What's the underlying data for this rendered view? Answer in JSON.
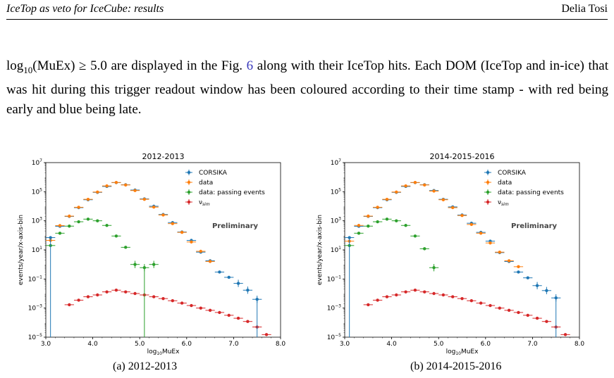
{
  "header": {
    "left": "IceTop as veto for IceCube: results",
    "right": "Delia Tosi"
  },
  "paragraph": {
    "math": "log",
    "math_sub": "10",
    "math_rest": "(MuEx) ≥ 5.0",
    "line1_tail": " are displayed in the Fig. ",
    "fig_ref": "6",
    "line1_tail2": " along with their IceTop hits. Each DOM (IceTop",
    "line2": "and in-ice) that was hit during this trigger readout window has been coloured according to their",
    "line3": "time stamp - with red being early and blue being late."
  },
  "captions": {
    "a": "(a) 2012-2013",
    "b": "(b) 2014-2015-2016"
  },
  "colors": {
    "corsika": "#1f77b4",
    "data": "#ff7f0e",
    "passing": "#2ca02c",
    "nusim": "#d62728"
  },
  "chart_data": [
    {
      "type": "scatter",
      "title": "2012-2013",
      "xlabel": "log10MuEx",
      "ylabel": "events/year/x-axis-bin",
      "xlim": [
        3.0,
        8.0
      ],
      "ylim_log10": [
        -5,
        7
      ],
      "yscale": "log",
      "xticks": [
        "3.0",
        "4.0",
        "5.0",
        "6.0",
        "7.0",
        "8.0"
      ],
      "yticks": [
        "10^-5",
        "10^-3",
        "10^-1",
        "10^1",
        "10^3",
        "10^5",
        "10^7"
      ],
      "annotation": "Preliminary",
      "legend_position": "top-right",
      "legend": [
        "CORSIKA",
        "data",
        "data: passing events",
        "ν_sim"
      ],
      "series": [
        {
          "name": "CORSIKA",
          "key": "corsika",
          "points": [
            [
              3.1,
              70
            ],
            [
              3.3,
              420
            ],
            [
              3.5,
              2000
            ],
            [
              3.7,
              8000
            ],
            [
              3.9,
              28000
            ],
            [
              4.1,
              90000
            ],
            [
              4.3,
              230000
            ],
            [
              4.5,
              420000
            ],
            [
              4.7,
              300000
            ],
            [
              4.9,
              130000
            ],
            [
              5.1,
              32000
            ],
            [
              5.3,
              10000
            ],
            [
              5.5,
              2700
            ],
            [
              5.7,
              750
            ],
            [
              5.9,
              170
            ],
            [
              6.1,
              45
            ],
            [
              6.3,
              7
            ],
            [
              6.5,
              1.8
            ],
            [
              6.7,
              0.3
            ],
            [
              6.9,
              0.13
            ],
            [
              7.1,
              0.05
            ],
            [
              7.3,
              0.017
            ],
            [
              7.5,
              0.004
            ]
          ]
        },
        {
          "name": "data",
          "key": "data",
          "points": [
            [
              3.1,
              45
            ],
            [
              3.3,
              470
            ],
            [
              3.5,
              2100
            ],
            [
              3.7,
              8500
            ],
            [
              3.9,
              30000
            ],
            [
              4.1,
              95000
            ],
            [
              4.3,
              250000
            ],
            [
              4.5,
              430000
            ],
            [
              4.7,
              290000
            ],
            [
              4.9,
              120000
            ],
            [
              5.1,
              30000
            ],
            [
              5.3,
              8700
            ],
            [
              5.5,
              2500
            ],
            [
              5.7,
              640
            ],
            [
              5.9,
              160
            ],
            [
              6.1,
              35
            ],
            [
              6.3,
              8
            ],
            [
              6.5,
              1.6
            ]
          ]
        },
        {
          "name": "data: passing events",
          "key": "passing",
          "points": [
            [
              3.1,
              20
            ],
            [
              3.3,
              140
            ],
            [
              3.5,
              430
            ],
            [
              3.7,
              860
            ],
            [
              3.9,
              1300
            ],
            [
              4.1,
              1000
            ],
            [
              4.3,
              480
            ],
            [
              4.5,
              90
            ],
            [
              4.7,
              15
            ],
            [
              4.9,
              1
            ],
            [
              5.1,
              0.6
            ],
            [
              5.3,
              1
            ]
          ]
        },
        {
          "name": "ν_sim",
          "key": "nusim",
          "points": [
            [
              3.5,
              0.0017
            ],
            [
              3.7,
              0.0035
            ],
            [
              3.9,
              0.006
            ],
            [
              4.1,
              0.008
            ],
            [
              4.3,
              0.013
            ],
            [
              4.5,
              0.017
            ],
            [
              4.7,
              0.013
            ],
            [
              4.9,
              0.01
            ],
            [
              5.1,
              0.008
            ],
            [
              5.3,
              0.006
            ],
            [
              5.5,
              0.0045
            ],
            [
              5.7,
              0.0032
            ],
            [
              5.9,
              0.0022
            ],
            [
              6.1,
              0.0015
            ],
            [
              6.3,
              0.001
            ],
            [
              6.5,
              0.0007
            ],
            [
              6.7,
              0.0005
            ],
            [
              6.9,
              0.00032
            ],
            [
              7.1,
              0.0002
            ],
            [
              7.3,
              0.00012
            ],
            [
              7.5,
              5e-05
            ],
            [
              7.7,
              1.5e-05
            ]
          ]
        }
      ]
    },
    {
      "type": "scatter",
      "title": "2014-2015-2016",
      "xlabel": "log10MuEx",
      "ylabel": "events/year/x-axis-bin",
      "xlim": [
        3.0,
        8.0
      ],
      "ylim_log10": [
        -5,
        7
      ],
      "yscale": "log",
      "xticks": [
        "3.0",
        "4.0",
        "5.0",
        "6.0",
        "7.0",
        "8.0"
      ],
      "yticks": [
        "10^-5",
        "10^-3",
        "10^-1",
        "10^1",
        "10^3",
        "10^5",
        "10^7"
      ],
      "annotation": "Preliminary",
      "legend_position": "top-right",
      "legend": [
        "CORSIKA",
        "data",
        "data: passing events",
        "ν_sim"
      ],
      "series": [
        {
          "name": "CORSIKA",
          "key": "corsika",
          "points": [
            [
              3.1,
              70
            ],
            [
              3.3,
              420
            ],
            [
              3.5,
              2000
            ],
            [
              3.7,
              8000
            ],
            [
              3.9,
              28000
            ],
            [
              4.1,
              90000
            ],
            [
              4.3,
              230000
            ],
            [
              4.5,
              420000
            ],
            [
              4.7,
              300000
            ],
            [
              4.9,
              120000
            ],
            [
              5.1,
              30000
            ],
            [
              5.3,
              9000
            ],
            [
              5.5,
              2500
            ],
            [
              5.7,
              680
            ],
            [
              5.9,
              160
            ],
            [
              6.1,
              40
            ],
            [
              6.3,
              6.5
            ],
            [
              6.5,
              1.6
            ],
            [
              6.7,
              0.3
            ],
            [
              6.9,
              0.12
            ],
            [
              7.1,
              0.035
            ],
            [
              7.3,
              0.016
            ],
            [
              7.5,
              0.005
            ]
          ]
        },
        {
          "name": "data",
          "key": "data",
          "points": [
            [
              3.1,
              40
            ],
            [
              3.3,
              480
            ],
            [
              3.5,
              2100
            ],
            [
              3.7,
              8500
            ],
            [
              3.9,
              30000
            ],
            [
              4.1,
              95000
            ],
            [
              4.3,
              250000
            ],
            [
              4.5,
              430000
            ],
            [
              4.7,
              290000
            ],
            [
              4.9,
              110000
            ],
            [
              5.1,
              28000
            ],
            [
              5.3,
              8000
            ],
            [
              5.5,
              2300
            ],
            [
              5.7,
              560
            ],
            [
              5.9,
              140
            ],
            [
              6.1,
              30
            ],
            [
              6.3,
              7
            ],
            [
              6.5,
              1.8
            ],
            [
              6.7,
              0.7
            ]
          ]
        },
        {
          "name": "data: passing events",
          "key": "passing",
          "points": [
            [
              3.1,
              20
            ],
            [
              3.3,
              140
            ],
            [
              3.5,
              430
            ],
            [
              3.7,
              860
            ],
            [
              3.9,
              1300
            ],
            [
              4.1,
              1000
            ],
            [
              4.3,
              480
            ],
            [
              4.5,
              90
            ],
            [
              4.7,
              12
            ],
            [
              4.9,
              0.6
            ]
          ]
        },
        {
          "name": "ν_sim",
          "key": "nusim",
          "points": [
            [
              3.5,
              0.0017
            ],
            [
              3.7,
              0.0035
            ],
            [
              3.9,
              0.006
            ],
            [
              4.1,
              0.008
            ],
            [
              4.3,
              0.013
            ],
            [
              4.5,
              0.017
            ],
            [
              4.7,
              0.013
            ],
            [
              4.9,
              0.01
            ],
            [
              5.1,
              0.008
            ],
            [
              5.3,
              0.006
            ],
            [
              5.5,
              0.0045
            ],
            [
              5.7,
              0.0032
            ],
            [
              5.9,
              0.0022
            ],
            [
              6.1,
              0.0015
            ],
            [
              6.3,
              0.001
            ],
            [
              6.5,
              0.0007
            ],
            [
              6.7,
              0.0005
            ],
            [
              6.9,
              0.00032
            ],
            [
              7.1,
              0.0002
            ],
            [
              7.3,
              0.00012
            ],
            [
              7.5,
              5e-05
            ],
            [
              7.7,
              1.5e-05
            ]
          ]
        }
      ]
    }
  ]
}
